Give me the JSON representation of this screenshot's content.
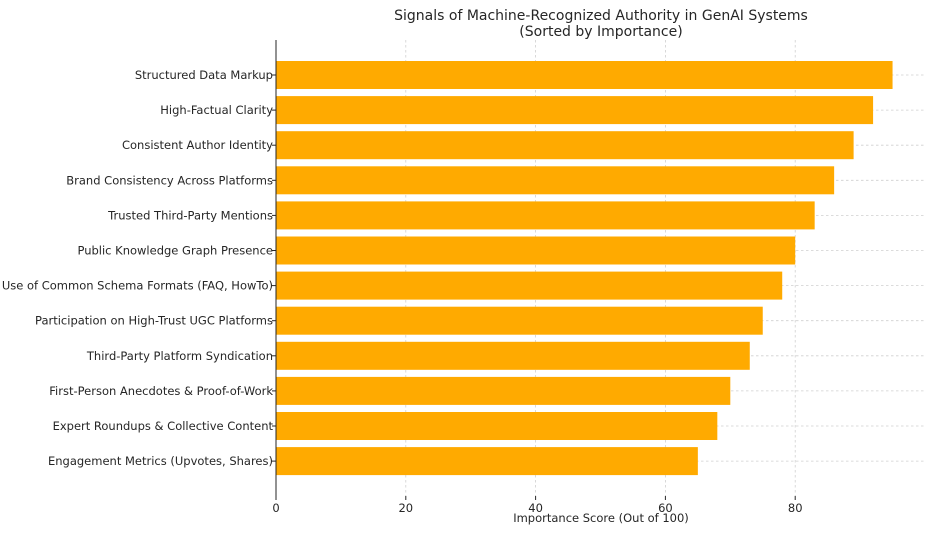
{
  "chart_data": {
    "type": "bar",
    "orientation": "horizontal",
    "title": "Signals of Machine-Recognized Authority in GenAI Systems",
    "subtitle": "(Sorted by Importance)",
    "xlabel": "Importance Score (Out of 100)",
    "ylabel": "",
    "xlim": [
      0,
      100
    ],
    "xticks": [
      0,
      20,
      40,
      60,
      80
    ],
    "grid": true,
    "bar_color": "#FFAA00",
    "categories": [
      "Structured Data Markup",
      "High-Factual Clarity",
      "Consistent Author Identity",
      "Brand Consistency Across Platforms",
      "Trusted Third-Party Mentions",
      "Public Knowledge Graph Presence",
      "Use of Common Schema Formats (FAQ, HowTo)",
      "Participation on High-Trust UGC Platforms",
      "Third-Party Platform Syndication",
      "First-Person Anecdotes & Proof-of-Work",
      "Expert Roundups & Collective Content",
      "Engagement Metrics (Upvotes, Shares)"
    ],
    "values": [
      95,
      92,
      89,
      86,
      83,
      80,
      78,
      75,
      73,
      70,
      68,
      65
    ]
  }
}
